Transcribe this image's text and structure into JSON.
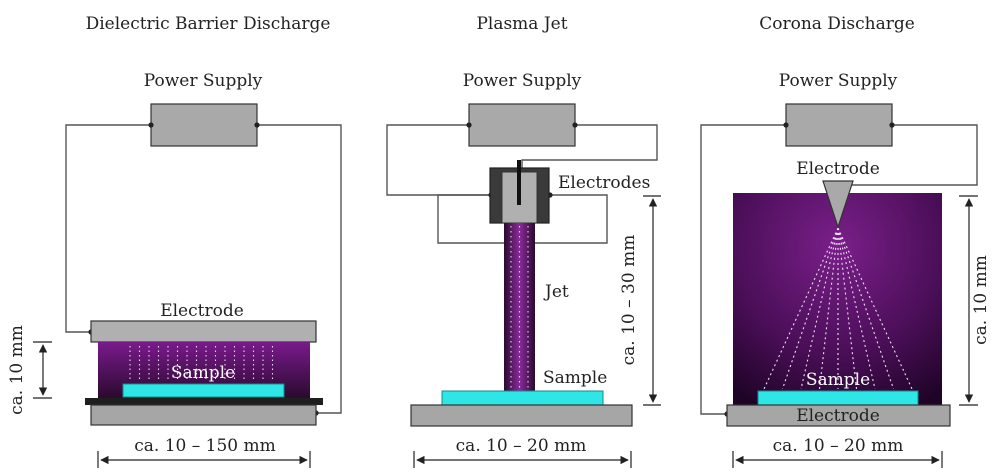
{
  "panels": [
    {
      "title": "Dielectric Barrier Discharge",
      "power_supply": "Power Supply",
      "electrode": "Electrode",
      "sample": "Sample",
      "height_dim": "ca. 10 mm",
      "width_dim": "ca. 10 – 150 mm"
    },
    {
      "title": "Plasma Jet",
      "power_supply": "Power Supply",
      "electrodes": "Electrodes",
      "jet": "Jet",
      "sample": "Sample",
      "height_dim": "ca. 10 – 30 mm",
      "width_dim": "ca. 10 – 20 mm"
    },
    {
      "title": "Corona Discharge",
      "power_supply": "Power Supply",
      "electrode_top": "Electrode",
      "sample": "Sample",
      "electrode_bottom": "Electrode",
      "height_dim": "ca. 10 mm",
      "width_dim": "ca. 10 – 20 mm"
    }
  ],
  "colors": {
    "box_fill": "#a9a9a9",
    "base_fill": "#a6a6a6",
    "sample_fill": "#2ee6e6",
    "plasma_dark": "#2a0a2e",
    "plasma_mid": "#7a1a8c",
    "dielectric": "#1f1f1f"
  }
}
